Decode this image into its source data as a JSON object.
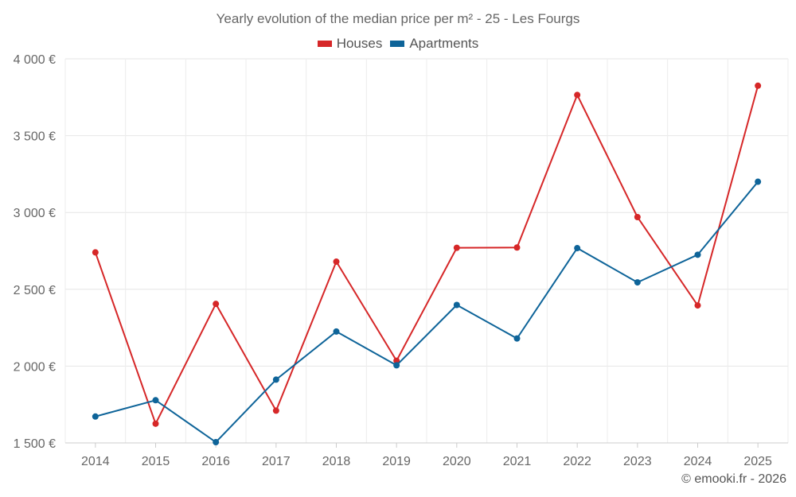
{
  "chart_data": {
    "type": "line",
    "title": "Yearly evolution of the median price per m² - 25 - Les Fourgs",
    "xlabel": "",
    "ylabel": "",
    "categories": [
      "2014",
      "2015",
      "2016",
      "2017",
      "2018",
      "2019",
      "2020",
      "2021",
      "2022",
      "2023",
      "2024",
      "2025"
    ],
    "ylim": [
      1500,
      4000
    ],
    "yticks": [
      1500,
      2000,
      2500,
      3000,
      3500,
      4000
    ],
    "ytick_labels": [
      "1 500 €",
      "2 000 €",
      "2 500 €",
      "3 000 €",
      "3 500 €",
      "4 000 €"
    ],
    "grid": true,
    "legend_position": "top-center",
    "series": [
      {
        "name": "Houses",
        "color": "#d62728",
        "values": [
          2740,
          1625,
          2405,
          1710,
          2680,
          2035,
          2770,
          2772,
          3765,
          2970,
          2395,
          3825
        ]
      },
      {
        "name": "Apartments",
        "color": "#0e6499",
        "values": [
          1672,
          1778,
          1505,
          1912,
          2225,
          2005,
          2398,
          2180,
          2768,
          2545,
          2725,
          3200
        ]
      }
    ]
  },
  "footer": {
    "copyright": "© emooki.fr - 2026"
  }
}
